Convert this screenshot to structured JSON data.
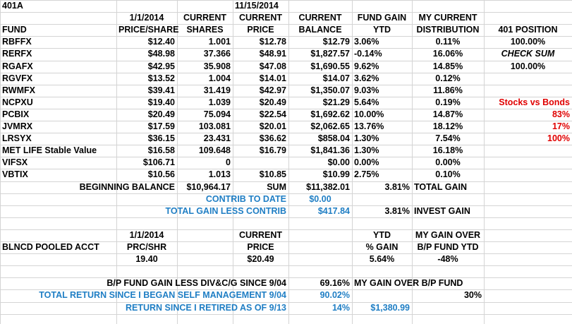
{
  "sheet": {
    "title": "401A"
  },
  "header": {
    "date_start": "1/1/2014",
    "date_current": "11/15/2014",
    "current": "CURRENT",
    "fund": "FUND",
    "price_share": "PRICE/SHARE",
    "shares": "SHARES",
    "price": "PRICE",
    "balance": "BALANCE",
    "fund_gain": "FUND GAIN",
    "ytd": "YTD",
    "my_current": "MY CURRENT",
    "distribution": "DISTRIBUTION",
    "position_401": "401 POSITION"
  },
  "funds": [
    {
      "name": "RBFFX",
      "price_share": "$12.40",
      "shares": "1.001",
      "price": "$12.78",
      "balance": "$12.79",
      "gain": "3.06%",
      "dist": "0.11%"
    },
    {
      "name": "RERFX",
      "price_share": "$48.98",
      "shares": "37.366",
      "price": "$48.91",
      "balance": "$1,827.57",
      "gain": "-0.14%",
      "dist": "16.06%"
    },
    {
      "name": "RGAFX",
      "price_share": "$42.95",
      "shares": "35.908",
      "price": "$47.08",
      "balance": "$1,690.55",
      "gain": "9.62%",
      "dist": "14.85%"
    },
    {
      "name": "RGVFX",
      "price_share": "$13.52",
      "shares": "1.004",
      "price": "$14.01",
      "balance": "$14.07",
      "gain": "3.62%",
      "dist": "0.12%"
    },
    {
      "name": "RWMFX",
      "price_share": "$39.41",
      "shares": "31.419",
      "price": "$42.97",
      "balance": "$1,350.07",
      "gain": "9.03%",
      "dist": "11.86%"
    },
    {
      "name": "NCPXU",
      "price_share": "$19.40",
      "shares": "1.039",
      "price": "$20.49",
      "balance": "$21.29",
      "gain": "5.64%",
      "dist": "0.19%"
    },
    {
      "name": "PCBIX",
      "price_share": "$20.49",
      "shares": "75.094",
      "price": "$22.54",
      "balance": "$1,692.62",
      "gain": "10.00%",
      "dist": "14.87%"
    },
    {
      "name": "JVMRX",
      "price_share": "$17.59",
      "shares": "103.081",
      "price": "$20.01",
      "balance": "$2,062.65",
      "gain": "13.76%",
      "dist": "18.12%"
    },
    {
      "name": "LRSYX",
      "price_share": "$36.15",
      "shares": "23.431",
      "price": "$36.62",
      "balance": "$858.04",
      "gain": "1.30%",
      "dist": "7.54%"
    },
    {
      "name": "MET LIFE Stable Value",
      "price_share": "$16.58",
      "shares": "109.648",
      "price": "$16.79",
      "balance": "$1,841.36",
      "gain": "1.30%",
      "dist": "16.18%"
    },
    {
      "name": "VIFSX",
      "price_share": "$106.71",
      "shares": "0",
      "price": "",
      "balance": "$0.00",
      "gain": "0.00%",
      "dist": "0.00%"
    },
    {
      "name": "VBTIX",
      "price_share": "$10.56",
      "shares": "1.013",
      "price": "$10.85",
      "balance": "$10.99",
      "gain": "2.75%",
      "dist": "0.10%"
    }
  ],
  "side": {
    "pos1": "100.00%",
    "check_sum": "CHECK SUM",
    "pos2": "100.00%",
    "stocks_vs_bonds": "Stocks vs Bonds",
    "stocks_pct": "83%",
    "bonds_pct": "17%",
    "total_pct": "100%"
  },
  "summary": {
    "beginning_label": "BEGINNING BALANCE",
    "beginning_value": "$10,964.17",
    "sum_label": "SUM",
    "sum_value": "$11,382.01",
    "total_gain_pct": "3.81%",
    "total_gain_label": "TOTAL GAIN",
    "contrib_label": "CONTRIB TO DATE",
    "contrib_value": "$0.00",
    "less_contrib_label": "TOTAL GAIN LESS CONTRIB",
    "less_contrib_value": "$417.84",
    "invest_gain_pct": "3.81%",
    "invest_gain_label": "INVEST GAIN"
  },
  "pooled": {
    "date": "1/1/2014",
    "current": "CURRENT",
    "ytd": "YTD",
    "my_gain_over": "MY GAIN OVER",
    "acct_label": "BLNCD POOLED ACCT",
    "prc_shr": "PRC/SHR",
    "price": "PRICE",
    "pct_gain": "% GAIN",
    "bp_fund_ytd": "B/P FUND YTD",
    "start_price": "19.40",
    "current_price": "$20.49",
    "gain": "5.64%",
    "gain_over": "-48%"
  },
  "bottom": {
    "bp_label": "B/P FUND GAIN LESS DIV&C/G SINCE 9/04",
    "bp_value": "69.16%",
    "my_gain_over_bp_label": "MY GAIN OVER  B/P FUND",
    "my_gain_over_bp_value": "30%",
    "self_mgmt_label": "TOTAL RETURN SINCE I BEGAN SELF MANAGEMENT 9/04",
    "self_mgmt_value": "90.02%",
    "retired_label": "RETURN SINCE I RETIRED AS OF 9/13",
    "retired_pct": "14%",
    "retired_value": "$1,380.99"
  },
  "colors": {
    "red": "#e00000",
    "blue": "#1f7ec4",
    "grid": "#d4d4d4"
  }
}
